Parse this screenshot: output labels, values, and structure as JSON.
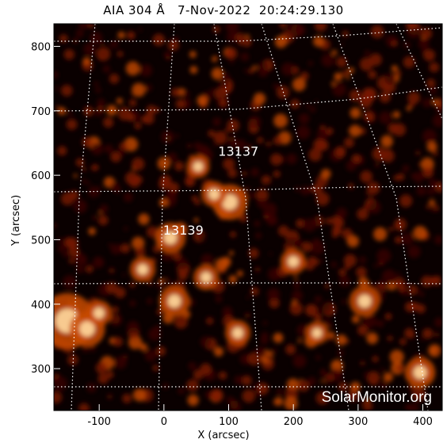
{
  "title": "AIA 304 Å   7-Nov-2022  20:24:29.130",
  "axes": {
    "x_label": "X (arcsec)",
    "y_label": "Y (arcsec)",
    "x_range": [
      -170,
      430
    ],
    "y_range": [
      235,
      835
    ],
    "x_ticks": [
      -100,
      0,
      100,
      200,
      300,
      400
    ],
    "y_ticks": [
      300,
      400,
      500,
      600,
      700,
      800
    ]
  },
  "regions": [
    {
      "label": "13137",
      "x": 115,
      "y": 630
    },
    {
      "label": "13139",
      "x": 30,
      "y": 508
    }
  ],
  "watermark": "SolarMonitor.org",
  "colors": {
    "background": "#000000",
    "emission_low": "#3a0500",
    "emission_mid": "#c84a00",
    "emission_high": "#ffd9a0",
    "grid": "#ffffff"
  }
}
